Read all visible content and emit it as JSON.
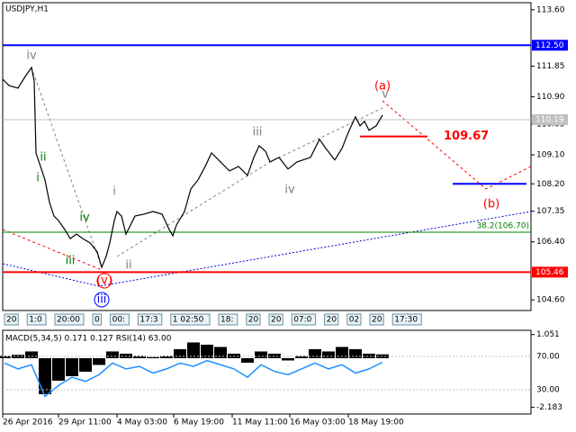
{
  "chart_data": {
    "type": "line",
    "title": "USDJPY,H1",
    "color": "#000000",
    "x": [
      3,
      10,
      20,
      28,
      35,
      38,
      40,
      45,
      50,
      55,
      60,
      65,
      72,
      78,
      85,
      92,
      100,
      108,
      113,
      118,
      122,
      127,
      130,
      135,
      140,
      145,
      150,
      160,
      170,
      180,
      188,
      192,
      196,
      205,
      212,
      220,
      228,
      235,
      245,
      255,
      265,
      275,
      282,
      288,
      295,
      300,
      310,
      320,
      330,
      345,
      355,
      362,
      372,
      380,
      388,
      395,
      400,
      405,
      410,
      418,
      425
    ],
    "values": [
      111.45,
      111.25,
      111.17,
      111.53,
      111.81,
      111.39,
      109.16,
      108.74,
      108.32,
      107.62,
      107.2,
      107.06,
      106.78,
      106.5,
      106.64,
      106.5,
      106.37,
      106.09,
      105.61,
      105.95,
      106.37,
      107.06,
      107.34,
      107.2,
      106.64,
      106.92,
      107.2,
      107.26,
      107.34,
      107.26,
      106.78,
      106.59,
      106.92,
      107.34,
      108.04,
      108.32,
      108.74,
      109.16,
      108.88,
      108.6,
      108.74,
      108.46,
      109.02,
      109.38,
      109.21,
      108.88,
      109.02,
      108.66,
      108.88,
      109.02,
      109.58,
      109.3,
      108.94,
      109.3,
      109.86,
      110.28,
      110.0,
      110.14,
      109.86,
      110.0,
      110.33
    ],
    "xlim": [
      3,
      590
    ],
    "xticks": [
      {
        "value": 3,
        "label": "26 Apr 2016"
      },
      {
        "value": 65,
        "label": "29 Apr 11:00"
      },
      {
        "value": 130,
        "label": "4 May 03:00"
      },
      {
        "value": 193,
        "label": "6 May 19:00"
      },
      {
        "value": 258,
        "label": "11 May 11:00"
      },
      {
        "value": 322,
        "label": "16 May 03:00"
      },
      {
        "value": 387,
        "label": "18 May 19:00"
      }
    ],
    "ylim": [
      104.27,
      113.82
    ],
    "yticks": [
      {
        "value": 113.6,
        "label": "113.60"
      },
      {
        "value": 111.85,
        "label": "111.85"
      },
      {
        "value": 110.9,
        "label": "110.90"
      },
      {
        "value": 110.05,
        "label": "110.05"
      },
      {
        "value": 109.1,
        "label": "109.10"
      },
      {
        "value": 108.2,
        "label": "108.20"
      },
      {
        "value": 107.35,
        "label": "107.35"
      },
      {
        "value": 106.4,
        "label": "106.40"
      },
      {
        "value": 104.6,
        "label": "104.60"
      }
    ],
    "axis_markers": [
      {
        "value": 112.5,
        "label": "112.50",
        "color": "#0000ff"
      },
      {
        "value": 110.19,
        "label": "110.19",
        "color": "#c0c0c0"
      },
      {
        "value": 105.46,
        "label": "105.46",
        "color": "#ff0000"
      }
    ],
    "segments": [
      {
        "value": 109.67,
        "label": "109.67",
        "color": "#ff0000"
      },
      {
        "value": 108.2,
        "color": "#0000ff"
      }
    ],
    "fib": {
      "value": 106.7,
      "label": "38.2(106.70)",
      "color": "#008000"
    },
    "annotations": [
      {
        "text": "iv",
        "color": "#808080"
      },
      {
        "text": "ii",
        "color": "#008000"
      },
      {
        "text": "i",
        "color": "#008000"
      },
      {
        "text": "iv",
        "color": "#008000"
      },
      {
        "text": "iii",
        "color": "#008000"
      },
      {
        "text": "(v)",
        "color": "#ff0000"
      },
      {
        "text": "iii",
        "color": "#0000ff"
      },
      {
        "text": "i",
        "color": "#808080"
      },
      {
        "text": "ii",
        "color": "#808080"
      },
      {
        "text": "iii",
        "color": "#808080"
      },
      {
        "text": "iv",
        "color": "#808080"
      },
      {
        "text": "(a)",
        "color": "#ff0000"
      },
      {
        "text": "v",
        "color": "#808080"
      },
      {
        "text": "(b)",
        "color": "#ff0000"
      }
    ],
    "object_tags": [
      "20",
      "1:0",
      "20:00",
      "0",
      "00:",
      "17:3",
      "1 02:50",
      "18:",
      "20",
      "20",
      "07:0",
      "20",
      "02",
      "20",
      "17:30"
    ],
    "indicator": {
      "label": "MACD(5,34,5) 0.171 0.127 RSI(14) 63.00",
      "x": [
        5,
        20,
        35,
        50,
        65,
        80,
        95,
        110,
        125,
        140,
        155,
        170,
        185,
        200,
        215,
        230,
        245,
        260,
        275,
        290,
        305,
        320,
        335,
        350,
        365,
        380,
        395,
        410,
        425
      ],
      "macd": [
        0.1,
        0.15,
        0.3,
        -1.6,
        -1.0,
        -0.8,
        -0.6,
        -0.3,
        0.3,
        0.2,
        0.1,
        0.05,
        0.1,
        0.4,
        0.7,
        0.6,
        0.5,
        0.2,
        -0.2,
        0.3,
        0.2,
        -0.1,
        0.1,
        0.4,
        0.3,
        0.5,
        0.4,
        0.2,
        0.17
      ],
      "macd_color": "#000000",
      "rsi": [
        62,
        55,
        60,
        22,
        35,
        45,
        40,
        48,
        62,
        55,
        58,
        50,
        55,
        62,
        58,
        65,
        60,
        55,
        45,
        60,
        52,
        48,
        55,
        62,
        55,
        60,
        50,
        55,
        63
      ],
      "rsi_color": "#1e90ff",
      "ylim": [
        -2.48,
        1.24
      ],
      "yticks": [
        1.051,
        -2.183
      ],
      "y2lim": [
        0.8,
        101.4
      ],
      "y2ticks": [
        {
          "value": 70,
          "label": "70.00"
        },
        {
          "value": 30,
          "label": "30.00"
        }
      ]
    }
  }
}
